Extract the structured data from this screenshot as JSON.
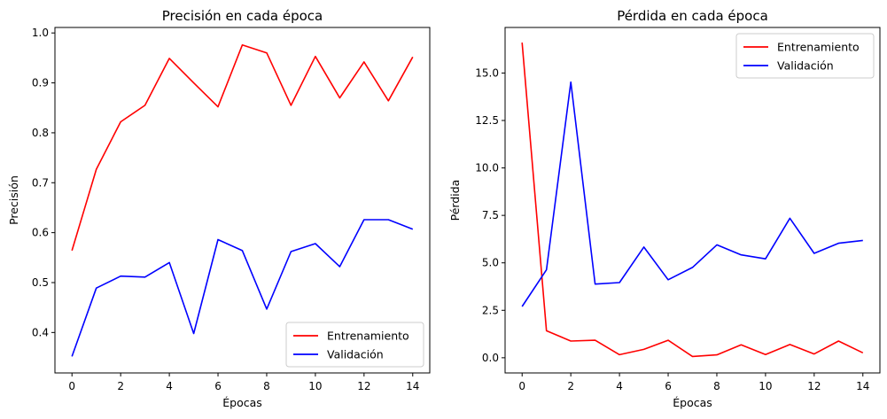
{
  "chart_data": [
    {
      "type": "line",
      "title": "Precisión en cada época",
      "xlabel": "Épocas",
      "ylabel": "Precisión",
      "xlim": [
        -0.7,
        14.7
      ],
      "ylim": [
        0.319,
        1.011
      ],
      "xticks": [
        0,
        2,
        4,
        6,
        8,
        10,
        12,
        14
      ],
      "yticks": [
        0.4,
        0.5,
        0.6,
        0.7,
        0.8,
        0.9,
        1.0
      ],
      "ytick_labels": [
        "0.4",
        "0.5",
        "0.6",
        "0.7",
        "0.8",
        "0.9",
        "1.0"
      ],
      "grid": false,
      "legend_position": "lower-right",
      "x": [
        0,
        1,
        2,
        3,
        4,
        5,
        6,
        7,
        8,
        9,
        10,
        11,
        12,
        13,
        14
      ],
      "series": [
        {
          "name": "Entrenamiento",
          "color": "#ff0000",
          "values": [
            0.564,
            0.727,
            0.822,
            0.855,
            0.949,
            0.9,
            0.852,
            0.976,
            0.96,
            0.855,
            0.953,
            0.87,
            0.942,
            0.864,
            0.952
          ]
        },
        {
          "name": "Validación",
          "color": "#0000ff",
          "values": [
            0.352,
            0.489,
            0.513,
            0.511,
            0.54,
            0.398,
            0.586,
            0.564,
            0.447,
            0.562,
            0.578,
            0.532,
            0.626,
            0.626,
            0.607
          ]
        }
      ]
    },
    {
      "type": "line",
      "title": "Pérdida en cada época",
      "xlabel": "Épocas",
      "ylabel": "Pérdida",
      "xlim": [
        -0.7,
        14.7
      ],
      "ylim": [
        -0.8,
        17.4
      ],
      "xticks": [
        0,
        2,
        4,
        6,
        8,
        10,
        12,
        14
      ],
      "yticks": [
        0.0,
        2.5,
        5.0,
        7.5,
        10.0,
        12.5,
        15.0
      ],
      "ytick_labels": [
        "0.0",
        "2.5",
        "5.0",
        "7.5",
        "10.0",
        "12.5",
        "15.0"
      ],
      "grid": false,
      "legend_position": "upper-right",
      "x": [
        0,
        1,
        2,
        3,
        4,
        5,
        6,
        7,
        8,
        9,
        10,
        11,
        12,
        13,
        14
      ],
      "series": [
        {
          "name": "Entrenamiento",
          "color": "#ff0000",
          "values": [
            16.6,
            1.42,
            0.88,
            0.92,
            0.16,
            0.44,
            0.92,
            0.07,
            0.15,
            0.68,
            0.17,
            0.7,
            0.2,
            0.88,
            0.26
          ]
        },
        {
          "name": "Validación",
          "color": "#0000ff",
          "values": [
            2.7,
            4.63,
            14.52,
            3.88,
            3.96,
            5.83,
            4.11,
            4.76,
            5.95,
            5.42,
            5.21,
            7.35,
            5.5,
            6.03,
            6.18
          ]
        }
      ]
    }
  ]
}
